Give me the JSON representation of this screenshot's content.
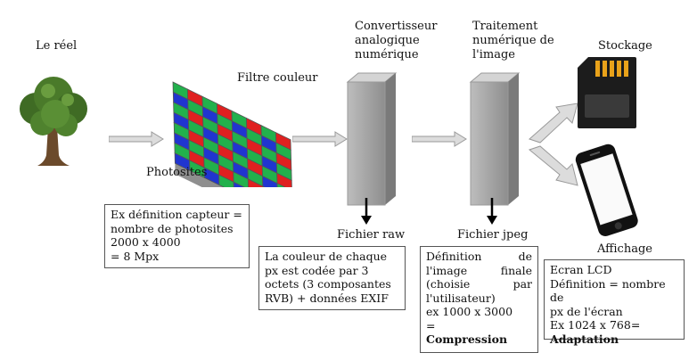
{
  "labels": {
    "reel": "Le réel",
    "filtre": "Filtre couleur",
    "photosites": "Photosites",
    "convertisseur": [
      "Convertisseur",
      "analogique",
      "numérique"
    ],
    "traitement": [
      "Traitement",
      "numérique de",
      "l'image"
    ],
    "stockage": "Stockage",
    "fichier_raw": "Fichier raw",
    "fichier_jpeg": "Fichier jpeg",
    "affichage": "Affichage"
  },
  "boxes": {
    "capteur": [
      "Ex définition capteur =",
      "nombre de photosites",
      "2000 x 4000",
      "= 8 Mpx"
    ],
    "raw": [
      "La couleur de chaque",
      "px est codée par 3",
      "octets (3 composantes",
      "RVB)  + données EXIF"
    ],
    "jpeg": [
      "Définition        de",
      "l'image          finale",
      "(choisie            par",
      "l'utilisateur)",
      "ex 1000 x 3000",
      "="
    ],
    "jpeg_bold": "Compression",
    "lcd": [
      "Ecran LCD",
      "Définition = nombre de",
      "px de l'écran",
      "Ex 1024 x 768="
    ],
    "lcd_bold": "Adaptation"
  }
}
